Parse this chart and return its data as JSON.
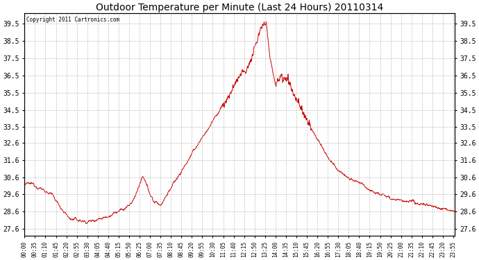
{
  "title": "Outdoor Temperature per Minute (Last 24 Hours) 20110314",
  "copyright_text": "Copyright 2011 Cartronics.com",
  "line_color": "#cc0000",
  "background_color": "#ffffff",
  "plot_background": "#ffffff",
  "grid_color": "#b0b0b0",
  "yticks": [
    27.6,
    28.6,
    29.6,
    30.6,
    31.6,
    32.6,
    33.5,
    34.5,
    35.5,
    36.5,
    37.5,
    38.5,
    39.5
  ],
  "ymin": 27.2,
  "ymax": 40.1,
  "xtick_labels": [
    "00:00",
    "00:35",
    "01:10",
    "01:45",
    "02:20",
    "02:55",
    "03:30",
    "04:05",
    "04:40",
    "05:15",
    "05:50",
    "06:25",
    "07:00",
    "07:35",
    "08:10",
    "08:45",
    "09:20",
    "09:55",
    "10:30",
    "11:05",
    "11:40",
    "12:15",
    "12:50",
    "13:25",
    "14:00",
    "14:35",
    "15:10",
    "15:45",
    "16:20",
    "16:55",
    "17:30",
    "18:05",
    "18:40",
    "19:15",
    "19:50",
    "20:25",
    "21:00",
    "21:35",
    "22:10",
    "22:45",
    "23:20",
    "23:55"
  ],
  "figwidth": 6.9,
  "figheight": 3.75,
  "dpi": 100
}
